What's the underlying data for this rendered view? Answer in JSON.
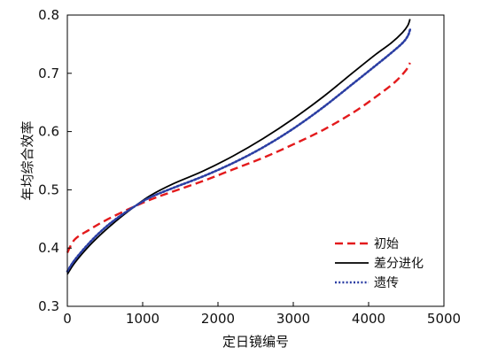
{
  "chart_data": {
    "type": "line",
    "title": "",
    "xlabel": "定日镜编号",
    "ylabel": "年均综合效率",
    "xlim": [
      0,
      5000
    ],
    "ylim": [
      0.3,
      0.8
    ],
    "xticks": [
      "0",
      "1000",
      "2000",
      "3000",
      "4000",
      "5000"
    ],
    "yticks": [
      "0.3",
      "0.4",
      "0.5",
      "0.6",
      "0.7",
      "0.8"
    ],
    "grid": false,
    "legend_position": "bottom-right",
    "series": [
      {
        "name": "初始",
        "color": "#e31a1c",
        "dash": "dashed",
        "x": [
          0,
          100,
          300,
          500,
          800,
          1100,
          1400,
          1800,
          2200,
          2600,
          3000,
          3400,
          3800,
          4100,
          4350,
          4500,
          4550
        ],
        "y": [
          0.392,
          0.415,
          0.432,
          0.447,
          0.466,
          0.483,
          0.497,
          0.515,
          0.535,
          0.555,
          0.578,
          0.603,
          0.633,
          0.66,
          0.685,
          0.706,
          0.718
        ]
      },
      {
        "name": "差分进化",
        "color": "#000000",
        "dash": "solid",
        "x": [
          0,
          100,
          300,
          500,
          700,
          900,
          1100,
          1400,
          1800,
          2200,
          2600,
          3000,
          3400,
          3800,
          4100,
          4300,
          4450,
          4520,
          4550
        ],
        "y": [
          0.355,
          0.375,
          0.405,
          0.43,
          0.452,
          0.472,
          0.49,
          0.51,
          0.532,
          0.558,
          0.588,
          0.622,
          0.66,
          0.702,
          0.733,
          0.752,
          0.77,
          0.782,
          0.793
        ]
      },
      {
        "name": "遗传",
        "color": "#2b3ea3",
        "dash": "dotted",
        "x": [
          0,
          100,
          300,
          500,
          700,
          900,
          1100,
          1400,
          1800,
          2200,
          2600,
          3000,
          3400,
          3800,
          4100,
          4300,
          4450,
          4520,
          4550
        ],
        "y": [
          0.36,
          0.38,
          0.41,
          0.435,
          0.455,
          0.472,
          0.487,
          0.503,
          0.523,
          0.546,
          0.573,
          0.605,
          0.642,
          0.683,
          0.714,
          0.735,
          0.752,
          0.764,
          0.775
        ]
      }
    ]
  }
}
